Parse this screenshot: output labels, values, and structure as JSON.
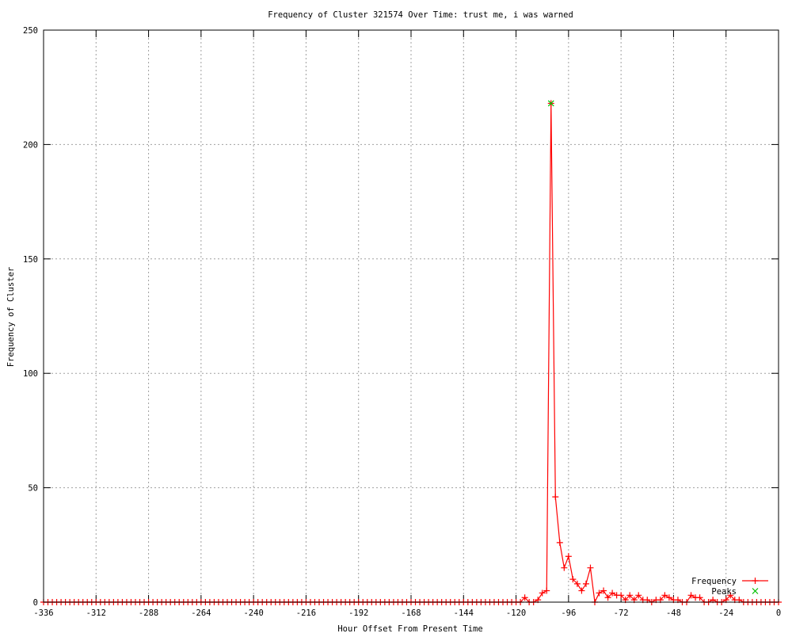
{
  "chart_data": {
    "type": "line",
    "title": "Frequency of Cluster 321574 Over Time: trust me, i was warned",
    "xlabel": "Hour Offset From Present Time",
    "ylabel": "Frequency of Cluster",
    "xlim": [
      -336,
      0
    ],
    "ylim": [
      0,
      250
    ],
    "xticks": [
      -336,
      -312,
      -288,
      -264,
      -240,
      -216,
      -192,
      -168,
      -144,
      -120,
      -96,
      -72,
      -48,
      -24,
      0
    ],
    "yticks": [
      0,
      50,
      100,
      150,
      200,
      250
    ],
    "grid": true,
    "legend_position": "bottom-right",
    "x": [
      -336,
      -334,
      -332,
      -330,
      -328,
      -326,
      -324,
      -322,
      -320,
      -318,
      -316,
      -314,
      -312,
      -310,
      -308,
      -306,
      -304,
      -302,
      -300,
      -298,
      -296,
      -294,
      -292,
      -290,
      -288,
      -286,
      -284,
      -282,
      -280,
      -278,
      -276,
      -274,
      -272,
      -270,
      -268,
      -266,
      -264,
      -262,
      -260,
      -258,
      -256,
      -254,
      -252,
      -250,
      -248,
      -246,
      -244,
      -242,
      -240,
      -238,
      -236,
      -234,
      -232,
      -230,
      -228,
      -226,
      -224,
      -222,
      -220,
      -218,
      -216,
      -214,
      -212,
      -210,
      -208,
      -206,
      -204,
      -202,
      -200,
      -198,
      -196,
      -194,
      -192,
      -190,
      -188,
      -186,
      -184,
      -182,
      -180,
      -178,
      -176,
      -174,
      -172,
      -170,
      -168,
      -166,
      -164,
      -162,
      -160,
      -158,
      -156,
      -154,
      -152,
      -150,
      -148,
      -146,
      -144,
      -142,
      -140,
      -138,
      -136,
      -134,
      -132,
      -130,
      -128,
      -126,
      -124,
      -122,
      -120,
      -118,
      -116,
      -114,
      -112,
      -110,
      -108,
      -106,
      -104,
      -102,
      -100,
      -98,
      -96,
      -94,
      -92,
      -90,
      -88,
      -86,
      -84,
      -82,
      -80,
      -78,
      -76,
      -74,
      -72,
      -70,
      -68,
      -66,
      -64,
      -62,
      -60,
      -58,
      -56,
      -54,
      -52,
      -50,
      -48,
      -46,
      -44,
      -42,
      -40,
      -38,
      -36,
      -34,
      -32,
      -30,
      -28,
      -26,
      -24,
      -22,
      -20,
      -18,
      -16,
      -14,
      -12,
      -10,
      -8,
      -6,
      -4,
      -2,
      0
    ],
    "series": [
      {
        "name": "Frequency",
        "color": "#ff0000",
        "marker": "plus",
        "values": [
          0,
          0,
          0,
          0,
          0,
          0,
          0,
          0,
          0,
          0,
          0,
          0,
          0,
          0,
          0,
          0,
          0,
          0,
          0,
          0,
          0,
          0,
          0,
          0,
          0,
          0,
          0,
          0,
          0,
          0,
          0,
          0,
          0,
          0,
          0,
          0,
          0,
          0,
          0,
          0,
          0,
          0,
          0,
          0,
          0,
          0,
          0,
          0,
          0,
          0,
          0,
          0,
          0,
          0,
          0,
          0,
          0,
          0,
          0,
          0,
          0,
          0,
          0,
          0,
          0,
          0,
          0,
          0,
          0,
          0,
          0,
          0,
          0,
          0,
          0,
          0,
          0,
          0,
          0,
          0,
          0,
          0,
          0,
          0,
          0,
          0,
          0,
          0,
          0,
          0,
          0,
          0,
          0,
          0,
          0,
          0,
          0,
          0,
          0,
          0,
          0,
          0,
          0,
          0,
          0,
          0,
          0,
          0,
          0,
          0,
          2,
          0,
          0,
          1,
          4,
          5,
          218,
          46,
          26,
          15,
          20,
          10,
          8,
          5,
          8,
          15,
          0,
          4,
          5,
          2,
          4,
          3,
          3,
          1,
          3,
          1,
          3,
          1,
          1,
          0,
          1,
          1,
          3,
          2,
          1,
          1,
          0,
          0,
          3,
          2,
          2,
          0,
          0,
          1,
          0,
          0,
          1,
          3,
          1,
          1,
          0,
          0,
          0,
          0,
          0,
          0,
          0,
          0,
          0
        ]
      },
      {
        "name": "Peaks",
        "color": "#00c000",
        "marker": "cross",
        "points": [
          [
            -104,
            218
          ]
        ]
      }
    ]
  }
}
